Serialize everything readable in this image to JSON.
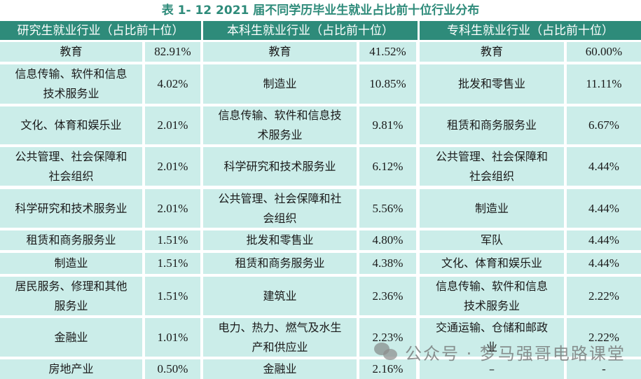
{
  "title": "表 1- 12    2021 届不同学历毕业生就业占比前十位行业分布",
  "headers": [
    "研究生就业行业（占比前十位）",
    "本科生就业行业（占比前十位）",
    "专科生就业行业（占比前十位）"
  ],
  "colors": {
    "header_bg": "#2E8B7A",
    "cell_bg": "#CBEDE9",
    "title": "#2E8B7A"
  },
  "graduate": [
    {
      "industry": "教育",
      "pct": "82.91%"
    },
    {
      "industry": "信息传输、软件和信息技术服务业",
      "pct": "4.02%"
    },
    {
      "industry": "文化、体育和娱乐业",
      "pct": "2.01%"
    },
    {
      "industry": "公共管理、社会保障和社会组织",
      "pct": "2.01%"
    },
    {
      "industry": "科学研究和技术服务业",
      "pct": "2.01%"
    },
    {
      "industry": "租赁和商务服务业",
      "pct": "1.51%"
    },
    {
      "industry": "制造业",
      "pct": "1.51%"
    },
    {
      "industry": "居民服务、修理和其他服务业",
      "pct": "1.51%"
    },
    {
      "industry": "金融业",
      "pct": "1.01%"
    },
    {
      "industry": "房地产业",
      "pct": "0.50%"
    }
  ],
  "undergraduate": [
    {
      "industry": "教育",
      "pct": "41.52%"
    },
    {
      "industry": "制造业",
      "pct": "10.85%"
    },
    {
      "industry": "信息传输、软件和信息技术服务业",
      "pct": "9.81%"
    },
    {
      "industry": "科学研究和技术服务业",
      "pct": "6.12%"
    },
    {
      "industry": "公共管理、社会保障和社会组织",
      "pct": "5.56%"
    },
    {
      "industry": "批发和零售业",
      "pct": "4.80%"
    },
    {
      "industry": "租赁和商务服务业",
      "pct": "4.38%"
    },
    {
      "industry": "建筑业",
      "pct": "2.36%"
    },
    {
      "industry": "电力、热力、燃气及水生产和供应业",
      "pct": "2.23%"
    },
    {
      "industry": "金融业",
      "pct": "2.16%"
    }
  ],
  "vocational": [
    {
      "industry": "教育",
      "pct": "60.00%"
    },
    {
      "industry": "批发和零售业",
      "pct": "11.11%"
    },
    {
      "industry": "租赁和商务服务业",
      "pct": "6.67%"
    },
    {
      "industry": "公共管理、社会保障和社会组织",
      "pct": "4.44%"
    },
    {
      "industry": "制造业",
      "pct": "4.44%"
    },
    {
      "industry": "军队",
      "pct": "4.44%"
    },
    {
      "industry": "文化、体育和娱乐业",
      "pct": "4.44%"
    },
    {
      "industry": "信息传输、软件和信息技术服务业",
      "pct": "2.22%"
    },
    {
      "industry": "交通运输、仓储和邮政业",
      "pct": "2.22%"
    },
    {
      "industry": "–",
      "pct": "-"
    }
  ],
  "watermark": "公众号 · 梦马强哥电路课堂"
}
